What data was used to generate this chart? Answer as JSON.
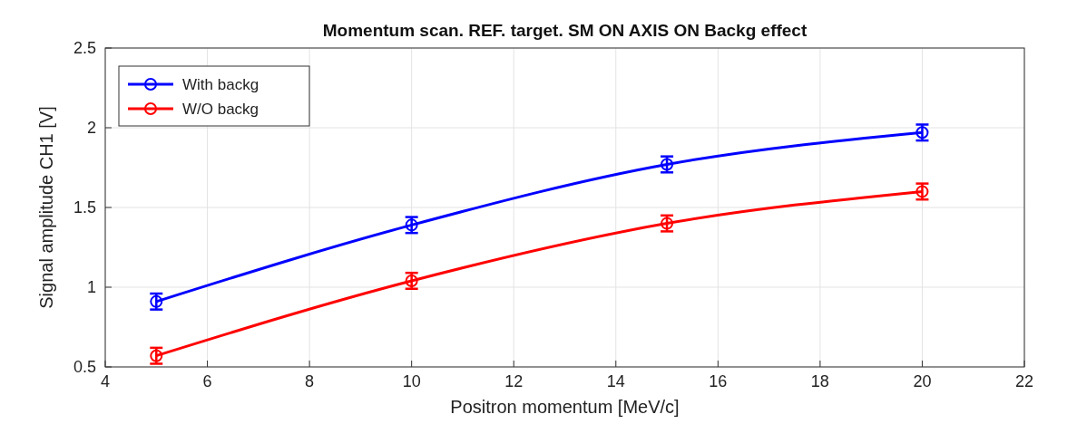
{
  "chart_data": {
    "type": "line",
    "title": "Momentum scan. REF. target. SM ON AXIS ON Backg effect",
    "xlabel": "Positron momentum [MeV/c]",
    "ylabel": "Signal amplitude CH1 [V]",
    "x": [
      5,
      10,
      15,
      20
    ],
    "series": [
      {
        "name": "With backg",
        "color": "#0000ff",
        "values": [
          0.91,
          1.39,
          1.77,
          1.97
        ],
        "errors": [
          0.05,
          0.05,
          0.05,
          0.05
        ]
      },
      {
        "name": "W/O backg",
        "color": "#ff0000",
        "values": [
          0.57,
          1.04,
          1.4,
          1.6
        ],
        "errors": [
          0.05,
          0.05,
          0.05,
          0.05
        ]
      }
    ],
    "xlim": [
      4,
      22
    ],
    "xticks": [
      4,
      6,
      8,
      10,
      12,
      14,
      16,
      18,
      20,
      22
    ],
    "ylim": [
      0.5,
      2.5
    ],
    "yticks": [
      0.5,
      1,
      1.5,
      2,
      2.5
    ],
    "grid": true,
    "legend": "top left",
    "marker": "circle",
    "line_style": "solid"
  }
}
